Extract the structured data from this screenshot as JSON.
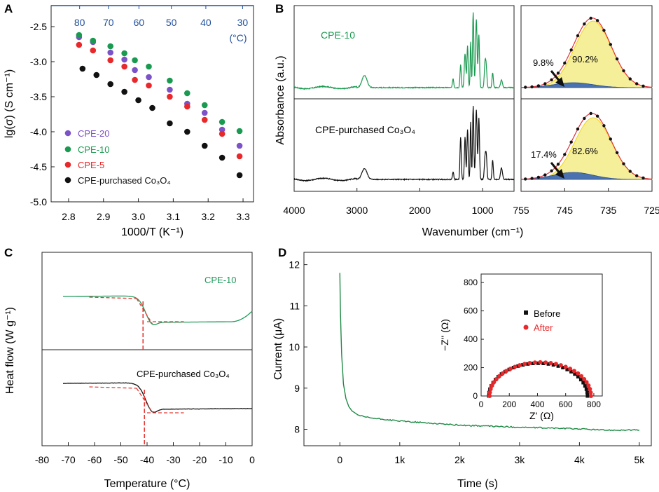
{
  "colors": {
    "purple": "#7b52c7",
    "green": "#1a9a50",
    "red": "#e8282a",
    "black": "#111111",
    "teal_label": "#1a9a50",
    "top_axis": "#1f4e9c",
    "fit_fill": "#f5ef9a",
    "fit_line_outer": "#f1d21a",
    "fit_line_red": "#e0313a",
    "blue_fill": "#4a72b0",
    "dashed_red": "#e53935",
    "dsc_green": "#1e9a5a",
    "ca_green": "#1e8a45"
  },
  "panels": {
    "A": {
      "letter": "A"
    },
    "B": {
      "letter": "B"
    },
    "C": {
      "letter": "C"
    },
    "D": {
      "letter": "D"
    }
  },
  "chart_data": [
    {
      "id": "A",
      "type": "scatter",
      "title": "",
      "xlabel": "1000/T (K⁻¹)",
      "ylabel": "lg(σ) (S cm⁻¹)",
      "xlim": [
        2.75,
        3.33
      ],
      "ylim": [
        -5.0,
        -2.2
      ],
      "xticks": [
        2.8,
        2.9,
        3.0,
        3.1,
        3.2,
        3.3
      ],
      "xtick_labels": [
        "2.8",
        "2.9",
        "3.0",
        "3.1",
        "3.2",
        "3.3"
      ],
      "yticks": [
        -2.5,
        -3.0,
        -3.5,
        -4.0,
        -4.5,
        -5.0
      ],
      "ytick_labels": [
        "-2.5",
        "-3.0",
        "-3.5",
        "-4.0",
        "-4.5",
        "-5.0"
      ],
      "top_axis": {
        "ticks_celsius": [
          80,
          70,
          60,
          50,
          40,
          30
        ],
        "tick_labels": [
          "80",
          "70",
          "60",
          "50",
          "40",
          "30"
        ],
        "unit": "(°C)"
      },
      "legend_position": "bottom-left",
      "series": [
        {
          "name": "CPE-20",
          "color_key": "purple",
          "x": [
            2.83,
            2.87,
            2.92,
            2.96,
            2.99,
            3.03,
            3.09,
            3.14,
            3.19,
            3.24,
            3.29
          ],
          "y": [
            -2.65,
            -2.72,
            -2.87,
            -2.97,
            -3.12,
            -3.22,
            -3.4,
            -3.6,
            -3.73,
            -3.97,
            -4.2
          ]
        },
        {
          "name": "CPE-10",
          "color_key": "green",
          "x": [
            2.83,
            2.87,
            2.92,
            2.96,
            2.99,
            3.03,
            3.09,
            3.14,
            3.19,
            3.24,
            3.29
          ],
          "y": [
            -2.62,
            -2.7,
            -2.78,
            -2.88,
            -2.98,
            -3.07,
            -3.27,
            -3.45,
            -3.62,
            -3.86,
            -3.99
          ]
        },
        {
          "name": "CPE-5",
          "color_key": "red",
          "x": [
            2.83,
            2.87,
            2.92,
            2.96,
            2.99,
            3.03,
            3.09,
            3.14,
            3.19,
            3.24,
            3.29
          ],
          "y": [
            -2.76,
            -2.84,
            -2.98,
            -3.07,
            -3.26,
            -3.34,
            -3.5,
            -3.64,
            -3.83,
            -4.03,
            -4.35
          ]
        },
        {
          "name": "CPE-purchased Co₃O₄",
          "color_key": "black",
          "x": [
            2.84,
            2.88,
            2.92,
            2.96,
            3.0,
            3.04,
            3.09,
            3.14,
            3.19,
            3.24,
            3.29
          ],
          "y": [
            -3.1,
            -3.19,
            -3.32,
            -3.43,
            -3.55,
            -3.66,
            -3.88,
            -4.0,
            -4.2,
            -4.37,
            -4.62
          ]
        }
      ]
    },
    {
      "id": "B",
      "type": "line",
      "xlabel": "Wavenumber (cm⁻¹)",
      "ylabel": "Absorbance (a.u.)",
      "left": {
        "xlim": [
          4000,
          500
        ],
        "xticks": [
          4000,
          3000,
          2000,
          1000
        ],
        "xtick_labels": [
          "4000",
          "3000",
          "2000",
          "1000"
        ],
        "spectra": [
          {
            "name": "CPE-10",
            "color_key": "green"
          },
          {
            "name": "CPE-purchased Co₃O₄",
            "color_key": "black"
          }
        ]
      },
      "right": {
        "xlim": [
          755,
          725
        ],
        "xticks": [
          755,
          745,
          735,
          725
        ],
        "xtick_labels": [
          "755",
          "745",
          "735",
          "725"
        ],
        "fits": [
          {
            "sample": "CPE-10",
            "small_peak_pct": "9.8%",
            "large_peak_pct": "90.2%"
          },
          {
            "sample": "CPE-purchased Co₃O₄",
            "small_peak_pct": "17.4%",
            "large_peak_pct": "82.6%"
          }
        ]
      }
    },
    {
      "id": "C",
      "type": "line",
      "xlabel": "Temperature (°C)",
      "ylabel": "Heat flow (W g⁻¹)",
      "xlim": [
        -80,
        0
      ],
      "xticks": [
        -80,
        -70,
        -60,
        -50,
        -40,
        -30,
        -20,
        -10,
        0
      ],
      "xtick_labels": [
        "-80",
        "-70",
        "-60",
        "-50",
        "-40",
        "-30",
        "-20",
        "-10",
        "0"
      ],
      "tg_marker_celsius": -41,
      "curves": [
        {
          "name": "CPE-10",
          "color_key": "dsc_green"
        },
        {
          "name": "CPE-purchased Co₃O₄",
          "color_key": "black"
        }
      ]
    },
    {
      "id": "D",
      "type": "line",
      "xlabel": "Time (s)",
      "ylabel": "Current (μA)",
      "xlim": [
        -600,
        5200
      ],
      "ylim": [
        7.6,
        12.3
      ],
      "xticks": [
        0,
        1000,
        2000,
        3000,
        4000,
        5000
      ],
      "xtick_labels": [
        "0",
        "1k",
        "2k",
        "3k",
        "4k",
        "5k"
      ],
      "yticks": [
        8,
        9,
        10,
        11,
        12
      ],
      "ytick_labels": [
        "8",
        "9",
        "10",
        "11",
        "12"
      ],
      "series": [
        {
          "name": "current",
          "color_key": "ca_green",
          "x": [
            0,
            10,
            30,
            60,
            100,
            150,
            200,
            300,
            400,
            600,
            1000,
            2000,
            3000,
            4000,
            4400,
            4600,
            5000
          ],
          "y": [
            11.8,
            10.8,
            9.8,
            9.1,
            8.75,
            8.55,
            8.45,
            8.35,
            8.3,
            8.26,
            8.2,
            8.1,
            8.05,
            8.01,
            7.98,
            7.98,
            7.98
          ]
        }
      ],
      "inset": {
        "xlabel": "Z' (Ω)",
        "ylabel": "−Z'' (Ω)",
        "xlim": [
          0,
          860
        ],
        "ylim": [
          0,
          860
        ],
        "xticks": [
          0,
          200,
          400,
          600,
          800
        ],
        "xtick_labels": [
          "0",
          "200",
          "400",
          "600",
          "800"
        ],
        "yticks": [
          0,
          200,
          400,
          600,
          800
        ],
        "ytick_labels": [
          "0",
          "200",
          "400",
          "600",
          "800"
        ],
        "series": [
          {
            "name": "Before",
            "color_key": "black",
            "center": 405,
            "radius": 350
          },
          {
            "name": "After",
            "color_key": "red",
            "center": 420,
            "radius": 360
          }
        ]
      }
    }
  ]
}
